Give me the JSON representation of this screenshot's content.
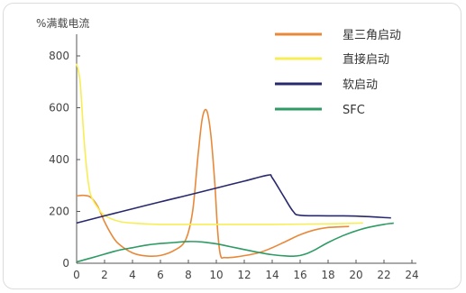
{
  "chart_data": {
    "type": "line",
    "title": "",
    "ylabel": "%满载电流",
    "xlabel": "",
    "xlim": [
      0,
      24
    ],
    "ylim": [
      0,
      800
    ],
    "xticks": [
      "0",
      "2",
      "4",
      "6",
      "8",
      "10",
      "12",
      "14",
      "16",
      "18",
      "20",
      "22",
      "24"
    ],
    "yticks": [
      "0",
      "200",
      "400",
      "600",
      "800"
    ],
    "legend_position": "top-right",
    "grid": false,
    "series": [
      {
        "name": "星三角启动",
        "color": "#e8893a",
        "points": [
          [
            0,
            260
          ],
          [
            0.5,
            262
          ],
          [
            1,
            255
          ],
          [
            1.5,
            220
          ],
          [
            2,
            160
          ],
          [
            2.5,
            110
          ],
          [
            3,
            75
          ],
          [
            4,
            40
          ],
          [
            5,
            28
          ],
          [
            6,
            30
          ],
          [
            7,
            50
          ],
          [
            7.8,
            90
          ],
          [
            8.3,
            200
          ],
          [
            8.7,
            420
          ],
          [
            9,
            560
          ],
          [
            9.3,
            590
          ],
          [
            9.6,
            500
          ],
          [
            9.9,
            300
          ],
          [
            10.1,
            120
          ],
          [
            10.3,
            30
          ],
          [
            10.6,
            22
          ],
          [
            11.5,
            25
          ],
          [
            13,
            40
          ],
          [
            14,
            60
          ],
          [
            15,
            85
          ],
          [
            16,
            110
          ],
          [
            17,
            128
          ],
          [
            18,
            138
          ],
          [
            19.5,
            142
          ]
        ]
      },
      {
        "name": "直接启动",
        "color": "#f7ee55",
        "points": [
          [
            0,
            770
          ],
          [
            0.25,
            700
          ],
          [
            0.5,
            500
          ],
          [
            0.75,
            350
          ],
          [
            1,
            265
          ],
          [
            1.5,
            215
          ],
          [
            2,
            185
          ],
          [
            3,
            162
          ],
          [
            4,
            155
          ],
          [
            6,
            150
          ],
          [
            10,
            150
          ],
          [
            14,
            150
          ],
          [
            18,
            152
          ],
          [
            20.5,
            155
          ]
        ]
      },
      {
        "name": "软启动",
        "color": "#28286e",
        "points": [
          [
            0,
            155
          ],
          [
            2,
            183
          ],
          [
            4,
            210
          ],
          [
            6,
            237
          ],
          [
            8,
            263
          ],
          [
            10,
            290
          ],
          [
            12,
            317
          ],
          [
            13.7,
            340
          ],
          [
            14,
            330
          ],
          [
            14.8,
            260
          ],
          [
            15.5,
            200
          ],
          [
            16,
            185
          ],
          [
            18,
            183
          ],
          [
            20,
            182
          ],
          [
            22.5,
            175
          ]
        ]
      },
      {
        "name": "SFC",
        "color": "#2e9b64",
        "points": [
          [
            0,
            5
          ],
          [
            1,
            20
          ],
          [
            2,
            35
          ],
          [
            3,
            50
          ],
          [
            4,
            60
          ],
          [
            5,
            70
          ],
          [
            6,
            76
          ],
          [
            7,
            80
          ],
          [
            8,
            84
          ],
          [
            9,
            82
          ],
          [
            10,
            75
          ],
          [
            11,
            64
          ],
          [
            12,
            53
          ],
          [
            13,
            42
          ],
          [
            14,
            33
          ],
          [
            15,
            28
          ],
          [
            15.5,
            27
          ],
          [
            16,
            30
          ],
          [
            16.5,
            38
          ],
          [
            17,
            50
          ],
          [
            18,
            80
          ],
          [
            19,
            105
          ],
          [
            20,
            125
          ],
          [
            21,
            140
          ],
          [
            22,
            150
          ],
          [
            22.7,
            155
          ]
        ]
      }
    ]
  }
}
